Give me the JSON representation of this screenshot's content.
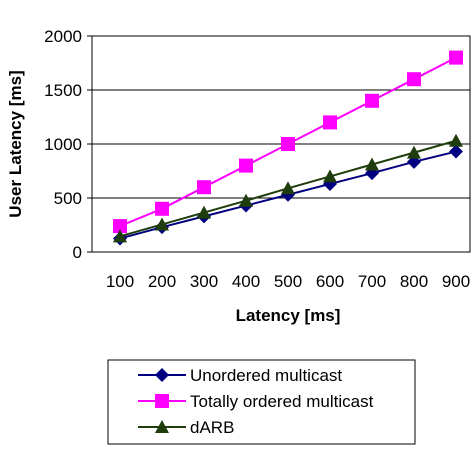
{
  "chart_data": {
    "type": "line",
    "xlabel": "Latency [ms]",
    "ylabel": "User Latency [ms]",
    "categories": [
      "100",
      "200",
      "300",
      "400",
      "500",
      "600",
      "700",
      "800",
      "900"
    ],
    "x": [
      100,
      200,
      300,
      400,
      500,
      600,
      700,
      800,
      900
    ],
    "ylim": [
      0,
      2000
    ],
    "yticks": [
      "0",
      "500",
      "1000",
      "1500",
      "2000"
    ],
    "grid": "horizontal",
    "legend_position": "bottom",
    "series": [
      {
        "name": "Unordered multicast",
        "values": [
          125,
          230,
          330,
          430,
          530,
          630,
          730,
          835,
          930
        ],
        "color": "#000080",
        "marker": "diamond"
      },
      {
        "name": "Totally ordered multicast",
        "values": [
          240,
          400,
          600,
          800,
          1000,
          1200,
          1400,
          1600,
          1800
        ],
        "color": "#ff00ff",
        "marker": "square"
      },
      {
        "name": "dARB",
        "values": [
          145,
          255,
          365,
          475,
          590,
          700,
          810,
          920,
          1030
        ],
        "color": "#1f3d0c",
        "marker": "triangle"
      }
    ]
  }
}
